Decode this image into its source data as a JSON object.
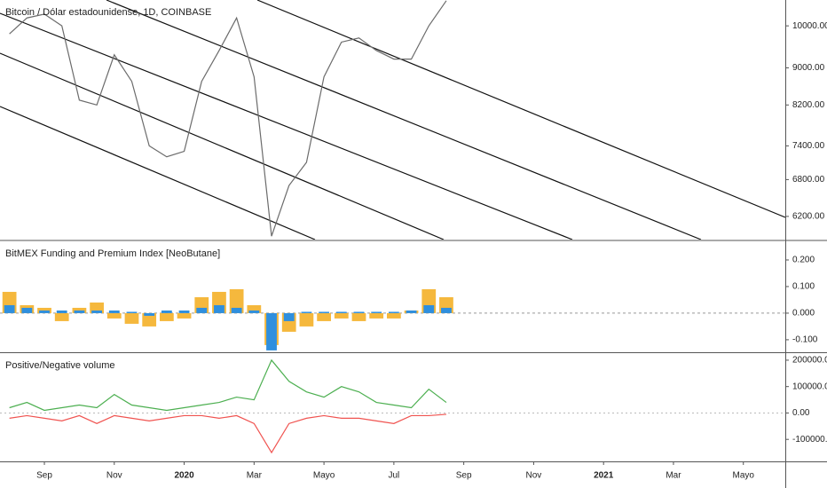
{
  "chart_data": [
    {
      "type": "line",
      "title": "Bitcoin / Dólar estadounidense, 1D, COINBASE",
      "log_scale": true,
      "x": [
        -1,
        -0.5,
        0,
        0.5,
        1,
        1.5,
        2,
        2.5,
        3,
        3.5,
        4,
        4.5,
        5,
        5.5,
        6,
        6.5,
        7,
        7.5,
        8,
        8.5,
        9,
        9.5,
        10,
        10.5,
        11,
        11.5
      ],
      "series": [
        {
          "color": "#6b6b6b",
          "values": [
            9800,
            10200,
            10300,
            10000,
            8300,
            8200,
            9300,
            8700,
            7400,
            7200,
            7300,
            8700,
            9400,
            10200,
            8800,
            5900,
            6700,
            7100,
            8800,
            9600,
            9700,
            9400,
            9200,
            9200,
            10000,
            10650
          ]
        }
      ],
      "xlim": [
        -1.27,
        21.2
      ],
      "ylim": [
        5850,
        10670
      ],
      "yticks": [
        {
          "value": 10000,
          "label": "10000.00"
        },
        {
          "value": 9000,
          "label": "9000.00"
        },
        {
          "value": 8200,
          "label": "8200.00"
        },
        {
          "value": 7400,
          "label": "7400.00"
        },
        {
          "value": 6800,
          "label": "6800.00"
        },
        {
          "value": 6200,
          "label": "6200.00"
        }
      ]
    },
    {
      "type": "bar",
      "title": "BitMEX Funding and Premium Index [NeoButane]",
      "x": [
        -1,
        -0.5,
        0,
        0.5,
        1,
        1.5,
        2,
        2.5,
        3,
        3.5,
        4,
        4.5,
        5,
        5.5,
        6,
        6.5,
        7,
        7.5,
        8,
        8.5,
        9,
        9.5,
        10,
        10.5,
        11,
        11.5
      ],
      "series": [
        {
          "color": "#f5b83d",
          "values": [
            0.08,
            0.03,
            0.02,
            -0.03,
            0.02,
            0.04,
            -0.02,
            -0.04,
            -0.05,
            -0.03,
            -0.02,
            0.06,
            0.08,
            0.09,
            0.03,
            -0.12,
            -0.07,
            -0.05,
            -0.03,
            -0.02,
            -0.03,
            -0.02,
            -0.02,
            0.01,
            0.09,
            0.06
          ]
        },
        {
          "color": "#2f8fde",
          "values": [
            0.03,
            0.02,
            0.01,
            0.01,
            0.01,
            0.01,
            0.01,
            0.005,
            -0.01,
            0.01,
            0.01,
            0.02,
            0.03,
            0.02,
            0.01,
            -0.14,
            -0.03,
            0.005,
            0.005,
            0.005,
            0.005,
            0.005,
            0.005,
            0.01,
            0.03,
            0.02
          ]
        }
      ],
      "xlim": [
        -1.27,
        21.2
      ],
      "ylim": [
        -0.147,
        0.27
      ],
      "yticks": [
        {
          "value": 0.2,
          "label": "0.200"
        },
        {
          "value": 0.1,
          "label": "0.100"
        },
        {
          "value": 0,
          "label": "0.000"
        },
        {
          "value": -0.1,
          "label": "-0.100"
        }
      ]
    },
    {
      "type": "line",
      "title": "Positive/Negative volume",
      "x": [
        -1,
        -0.5,
        0,
        0.5,
        1,
        1.5,
        2,
        2.5,
        3,
        3.5,
        4,
        4.5,
        5,
        5.5,
        6,
        6.5,
        7,
        7.5,
        8,
        8.5,
        9,
        9.5,
        10,
        10.5,
        11,
        11.5
      ],
      "series": [
        {
          "color": "#4caf50",
          "values": [
            20000,
            40000,
            10000,
            20000,
            30000,
            20000,
            70000,
            30000,
            20000,
            10000,
            20000,
            30000,
            40000,
            60000,
            50000,
            200000,
            120000,
            80000,
            60000,
            100000,
            80000,
            40000,
            30000,
            20000,
            90000,
            40000
          ]
        },
        {
          "color": "#f05350",
          "values": [
            -20000,
            -10000,
            -20000,
            -30000,
            -10000,
            -40000,
            -10000,
            -20000,
            -30000,
            -20000,
            -10000,
            -10000,
            -20000,
            -10000,
            -40000,
            -150000,
            -40000,
            -20000,
            -10000,
            -20000,
            -20000,
            -30000,
            -40000,
            -10000,
            -10000,
            -5000
          ]
        }
      ],
      "xlim": [
        -1.27,
        21.2
      ],
      "ylim": [
        -183333,
        226667
      ],
      "yticks": [
        {
          "value": 200000,
          "label": "200000.00"
        },
        {
          "value": 100000,
          "label": "100000.00"
        },
        {
          "value": 0,
          "label": "0.00"
        },
        {
          "value": -100000,
          "label": "-100000.00"
        }
      ],
      "xticks": [
        {
          "value": 0,
          "label": "Sep"
        },
        {
          "value": 2,
          "label": "Nov"
        },
        {
          "value": 4,
          "label": "2020"
        },
        {
          "value": 6,
          "label": "Mar"
        },
        {
          "value": 8,
          "label": "Mayo"
        },
        {
          "value": 10,
          "label": "Jul"
        },
        {
          "value": 12,
          "label": "Sep"
        },
        {
          "value": 14,
          "label": "Nov"
        },
        {
          "value": 16,
          "label": "2021"
        },
        {
          "value": 18,
          "label": "Mar"
        },
        {
          "value": 20,
          "label": "Mayo"
        }
      ]
    }
  ]
}
